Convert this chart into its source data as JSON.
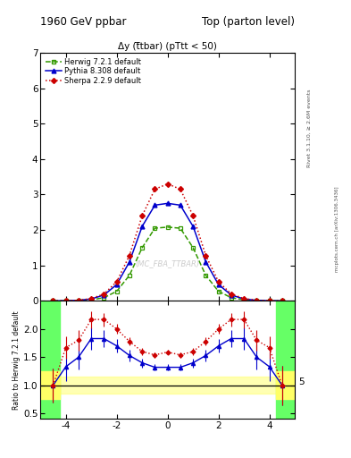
{
  "title_left": "1960 GeV ppbar",
  "title_right": "Top (parton level)",
  "plot_title": "Δy (t̅tbar) (pTtt < 50)",
  "watermark": "(MC_FBA_TTBAR)",
  "rivet_label": "Rivet 3.1.10, ≥ 2.6M events",
  "arxiv_label": "mcplots.cern.ch [arXiv:1306.3436]",
  "ylabel_ratio": "Ratio to Herwig 7.2.1 default",
  "xlim": [
    -5,
    5
  ],
  "ylim_main": [
    0,
    7
  ],
  "ylim_ratio": [
    0.4,
    2.5
  ],
  "yticks_main": [
    0,
    1,
    2,
    3,
    4,
    5,
    6,
    7
  ],
  "yticks_ratio": [
    0.5,
    1.0,
    1.5,
    2.0
  ],
  "xticks": [
    -4,
    -2,
    0,
    2,
    4
  ],
  "legend_labels": [
    "Herwig 7.2.1 default",
    "Pythia 8.308 default",
    "Sherpa 2.2.9 default"
  ],
  "herwig_color": "#339900",
  "pythia_color": "#0000cc",
  "sherpa_color": "#cc0000",
  "band_green": "#66ff66",
  "band_yellow": "#ffff66",
  "herwig_x": [
    -4.5,
    -4.0,
    -3.5,
    -3.0,
    -2.5,
    -2.0,
    -1.5,
    -1.0,
    -0.5,
    0.0,
    0.5,
    1.0,
    1.5,
    2.0,
    2.5,
    3.0,
    3.5,
    4.0,
    4.5
  ],
  "herwig_y": [
    0.001,
    0.003,
    0.01,
    0.03,
    0.09,
    0.27,
    0.72,
    1.5,
    2.05,
    2.08,
    2.05,
    1.5,
    0.72,
    0.27,
    0.09,
    0.03,
    0.01,
    0.003,
    0.001
  ],
  "pythia_x": [
    -4.5,
    -4.0,
    -3.5,
    -3.0,
    -2.5,
    -2.0,
    -1.5,
    -1.0,
    -0.5,
    0.0,
    0.5,
    1.0,
    1.5,
    2.0,
    2.5,
    3.0,
    3.5,
    4.0,
    4.5
  ],
  "pythia_y": [
    0.001,
    0.004,
    0.015,
    0.055,
    0.165,
    0.46,
    1.1,
    2.1,
    2.7,
    2.75,
    2.7,
    2.1,
    1.1,
    0.46,
    0.165,
    0.055,
    0.015,
    0.004,
    0.001
  ],
  "sherpa_x": [
    -4.5,
    -4.0,
    -3.5,
    -3.0,
    -2.5,
    -2.0,
    -1.5,
    -1.0,
    -0.5,
    0.0,
    0.5,
    1.0,
    1.5,
    2.0,
    2.5,
    3.0,
    3.5,
    4.0,
    4.5
  ],
  "sherpa_y": [
    0.001,
    0.005,
    0.018,
    0.065,
    0.195,
    0.54,
    1.28,
    2.4,
    3.15,
    3.3,
    3.15,
    2.4,
    1.28,
    0.54,
    0.195,
    0.065,
    0.018,
    0.005,
    0.001
  ],
  "ratio_x": [
    -4.5,
    -4.0,
    -3.5,
    -3.0,
    -2.5,
    -2.0,
    -1.5,
    -1.0,
    -0.5,
    0.0,
    0.5,
    1.0,
    1.5,
    2.0,
    2.5,
    3.0,
    3.5,
    4.0,
    4.5
  ],
  "ratio_pythia_y": [
    1.0,
    1.33,
    1.5,
    1.83,
    1.83,
    1.7,
    1.53,
    1.4,
    1.32,
    1.32,
    1.32,
    1.4,
    1.53,
    1.7,
    1.83,
    1.83,
    1.5,
    1.33,
    1.0
  ],
  "ratio_sherpa_y": [
    1.0,
    1.67,
    1.8,
    2.17,
    2.17,
    2.0,
    1.78,
    1.6,
    1.54,
    1.59,
    1.54,
    1.6,
    1.78,
    2.0,
    2.17,
    2.17,
    1.8,
    1.67,
    1.0
  ],
  "ratio_pythia_err": [
    0.3,
    0.25,
    0.22,
    0.2,
    0.15,
    0.12,
    0.1,
    0.08,
    0.06,
    0.05,
    0.06,
    0.08,
    0.1,
    0.12,
    0.15,
    0.2,
    0.22,
    0.25,
    0.35
  ],
  "ratio_sherpa_err": [
    0.3,
    0.2,
    0.18,
    0.15,
    0.12,
    0.09,
    0.07,
    0.06,
    0.05,
    0.04,
    0.05,
    0.06,
    0.07,
    0.09,
    0.12,
    0.15,
    0.18,
    0.2,
    0.35
  ],
  "background_color": "#ffffff"
}
